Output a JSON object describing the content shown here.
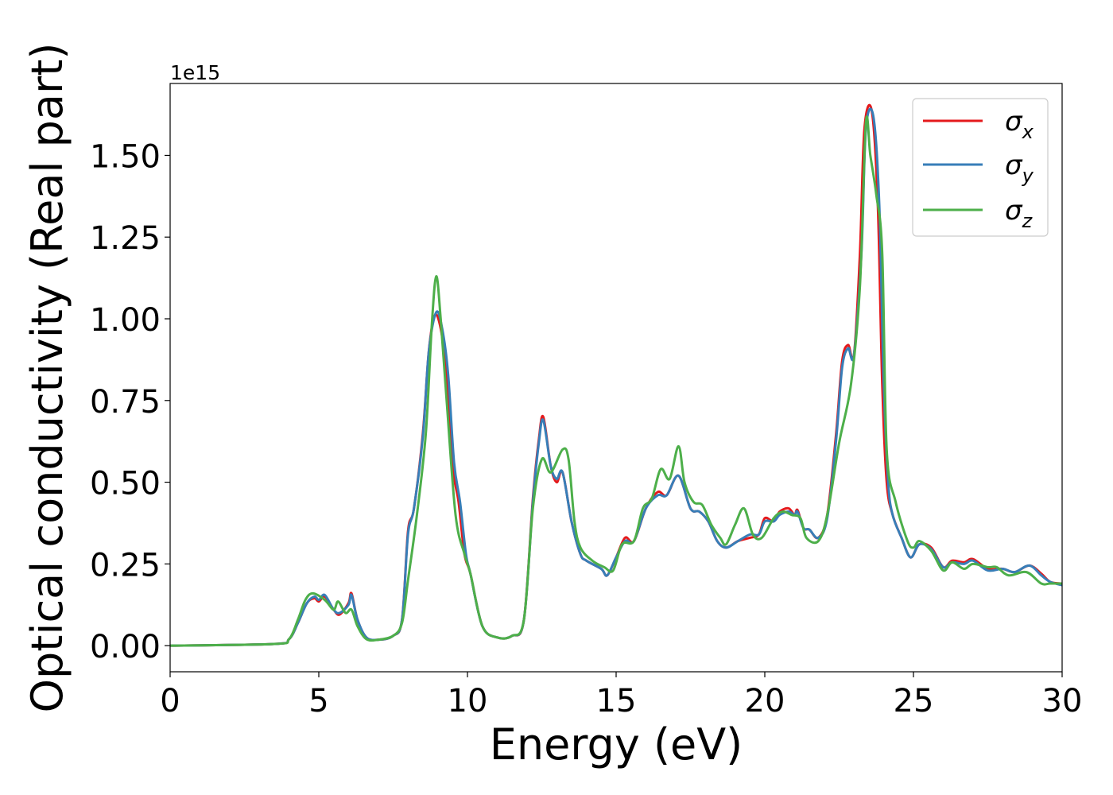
{
  "chart_data": {
    "type": "line",
    "title": "",
    "xlabel": "Energy (eV)",
    "ylabel": "Optical conductivity (Real part)",
    "y_offset_text": "1e15",
    "xlim": [
      0,
      30
    ],
    "ylim": [
      -0.08,
      1.72
    ],
    "xticks": [
      0,
      5,
      10,
      15,
      20,
      25,
      30
    ],
    "xtick_labels": [
      "0",
      "5",
      "10",
      "15",
      "20",
      "25",
      "30"
    ],
    "yticks": [
      0,
      0.25,
      0.5,
      0.75,
      1.0,
      1.25,
      1.5
    ],
    "ytick_labels": [
      "0.00",
      "0.25",
      "0.50",
      "0.75",
      "1.00",
      "1.25",
      "1.50"
    ],
    "grid": false,
    "legend_position": "top-right",
    "series": [
      {
        "name": "σx",
        "label_base": "σ",
        "label_sub": "x",
        "color": "#e41a1c",
        "x": [
          0,
          3.5,
          4.0,
          4.3,
          4.6,
          4.85,
          5.0,
          5.2,
          5.5,
          5.7,
          6.0,
          6.1,
          6.3,
          6.6,
          7.0,
          7.5,
          7.8,
          8.0,
          8.2,
          8.5,
          8.7,
          8.9,
          9.1,
          9.3,
          9.5,
          9.7,
          9.9,
          10.1,
          10.5,
          11.0,
          11.5,
          11.9,
          12.2,
          12.4,
          12.55,
          12.8,
          13.0,
          13.2,
          13.5,
          13.8,
          14.0,
          14.5,
          14.7,
          15.0,
          15.3,
          15.6,
          16.0,
          16.4,
          16.7,
          17.1,
          17.5,
          17.8,
          18.1,
          18.4,
          18.7,
          19.1,
          19.5,
          19.8,
          20.0,
          20.3,
          20.5,
          20.8,
          21.0,
          21.1,
          21.3,
          21.5,
          21.8,
          22.1,
          22.4,
          22.6,
          22.8,
          23.0,
          23.2,
          23.35,
          23.6,
          23.8,
          23.95,
          24.1,
          24.3,
          24.6,
          24.9,
          25.2,
          25.6,
          26.0,
          26.3,
          26.7,
          27.0,
          27.5,
          28.0,
          28.4,
          28.9,
          29.3,
          29.6,
          30
        ],
        "y": [
          0,
          0.005,
          0.02,
          0.07,
          0.13,
          0.145,
          0.135,
          0.15,
          0.11,
          0.095,
          0.13,
          0.16,
          0.08,
          0.025,
          0.018,
          0.03,
          0.08,
          0.35,
          0.42,
          0.65,
          0.9,
          1.01,
          0.97,
          0.83,
          0.55,
          0.44,
          0.28,
          0.22,
          0.06,
          0.025,
          0.03,
          0.08,
          0.45,
          0.63,
          0.7,
          0.55,
          0.5,
          0.53,
          0.38,
          0.28,
          0.26,
          0.235,
          0.215,
          0.27,
          0.33,
          0.32,
          0.42,
          0.47,
          0.46,
          0.52,
          0.42,
          0.41,
          0.38,
          0.32,
          0.3,
          0.32,
          0.33,
          0.34,
          0.39,
          0.38,
          0.41,
          0.42,
          0.4,
          0.415,
          0.36,
          0.355,
          0.33,
          0.4,
          0.65,
          0.87,
          0.92,
          0.89,
          1.2,
          1.58,
          1.635,
          1.35,
          0.8,
          0.5,
          0.4,
          0.33,
          0.27,
          0.31,
          0.3,
          0.24,
          0.26,
          0.255,
          0.265,
          0.235,
          0.235,
          0.225,
          0.245,
          0.22,
          0.195,
          0.19
        ]
      },
      {
        "name": "σy",
        "label_base": "σ",
        "label_sub": "y",
        "color": "#377eb8",
        "x": [
          0,
          3.5,
          4.0,
          4.3,
          4.6,
          4.85,
          5.0,
          5.2,
          5.5,
          5.7,
          6.0,
          6.1,
          6.3,
          6.6,
          7.0,
          7.5,
          7.8,
          8.0,
          8.2,
          8.5,
          8.7,
          8.95,
          9.15,
          9.35,
          9.55,
          9.75,
          9.95,
          10.1,
          10.5,
          11.0,
          11.5,
          11.9,
          12.2,
          12.4,
          12.55,
          12.8,
          13.0,
          13.2,
          13.5,
          13.8,
          14.0,
          14.5,
          14.7,
          15.0,
          15.3,
          15.6,
          16.0,
          16.4,
          16.7,
          17.1,
          17.5,
          17.8,
          18.1,
          18.4,
          18.7,
          19.1,
          19.5,
          19.8,
          20.0,
          20.3,
          20.5,
          20.8,
          21.0,
          21.1,
          21.3,
          21.5,
          21.8,
          22.1,
          22.4,
          22.6,
          22.8,
          23.0,
          23.25,
          23.4,
          23.65,
          23.85,
          24.0,
          24.15,
          24.3,
          24.6,
          24.9,
          25.2,
          25.6,
          26.0,
          26.3,
          26.7,
          27.0,
          27.5,
          28.0,
          28.4,
          28.9,
          29.3,
          29.6,
          30
        ],
        "y": [
          0,
          0.005,
          0.02,
          0.07,
          0.13,
          0.15,
          0.14,
          0.155,
          0.11,
          0.1,
          0.125,
          0.155,
          0.08,
          0.025,
          0.018,
          0.03,
          0.08,
          0.34,
          0.42,
          0.64,
          0.9,
          1.02,
          0.97,
          0.83,
          0.56,
          0.44,
          0.28,
          0.22,
          0.06,
          0.025,
          0.03,
          0.08,
          0.44,
          0.62,
          0.69,
          0.55,
          0.51,
          0.53,
          0.38,
          0.28,
          0.26,
          0.235,
          0.215,
          0.27,
          0.32,
          0.32,
          0.42,
          0.46,
          0.46,
          0.52,
          0.42,
          0.41,
          0.38,
          0.32,
          0.3,
          0.32,
          0.34,
          0.34,
          0.38,
          0.38,
          0.4,
          0.41,
          0.4,
          0.41,
          0.36,
          0.355,
          0.33,
          0.39,
          0.63,
          0.85,
          0.91,
          0.89,
          1.2,
          1.58,
          1.62,
          1.35,
          0.8,
          0.5,
          0.4,
          0.33,
          0.27,
          0.31,
          0.295,
          0.24,
          0.255,
          0.25,
          0.26,
          0.23,
          0.235,
          0.225,
          0.245,
          0.215,
          0.195,
          0.185
        ]
      },
      {
        "name": "σz",
        "label_base": "σ",
        "label_sub": "z",
        "color": "#4daf4a",
        "x": [
          0,
          3.5,
          4.0,
          4.3,
          4.55,
          4.8,
          5.2,
          5.5,
          5.65,
          5.9,
          6.1,
          6.3,
          6.6,
          7.0,
          7.5,
          7.8,
          8.0,
          8.3,
          8.6,
          8.8,
          8.95,
          9.1,
          9.3,
          9.6,
          9.9,
          10.1,
          10.5,
          11.0,
          11.5,
          11.9,
          12.2,
          12.5,
          12.8,
          13.2,
          13.4,
          13.6,
          13.8,
          14.2,
          14.6,
          14.9,
          15.2,
          15.6,
          15.9,
          16.2,
          16.5,
          16.8,
          17.1,
          17.3,
          17.6,
          17.9,
          18.2,
          18.5,
          18.7,
          19.0,
          19.3,
          19.6,
          19.9,
          20.3,
          20.6,
          20.9,
          21.2,
          21.4,
          21.8,
          22.1,
          22.5,
          22.9,
          23.2,
          23.4,
          23.55,
          23.75,
          23.95,
          24.1,
          24.4,
          24.8,
          25.0,
          25.2,
          25.6,
          26.0,
          26.3,
          26.7,
          27.0,
          27.5,
          27.8,
          28.2,
          28.8,
          29.3,
          29.6,
          30
        ],
        "y": [
          0,
          0.005,
          0.02,
          0.08,
          0.14,
          0.16,
          0.14,
          0.11,
          0.135,
          0.1,
          0.11,
          0.06,
          0.02,
          0.018,
          0.03,
          0.07,
          0.2,
          0.4,
          0.65,
          0.98,
          1.13,
          1.0,
          0.75,
          0.4,
          0.28,
          0.22,
          0.06,
          0.025,
          0.03,
          0.08,
          0.42,
          0.57,
          0.53,
          0.6,
          0.57,
          0.38,
          0.3,
          0.26,
          0.24,
          0.23,
          0.31,
          0.32,
          0.42,
          0.45,
          0.54,
          0.51,
          0.61,
          0.5,
          0.44,
          0.43,
          0.37,
          0.33,
          0.31,
          0.37,
          0.42,
          0.34,
          0.33,
          0.39,
          0.41,
          0.4,
          0.39,
          0.33,
          0.32,
          0.4,
          0.62,
          0.8,
          1.1,
          1.6,
          1.5,
          1.38,
          1.2,
          0.6,
          0.44,
          0.32,
          0.3,
          0.32,
          0.29,
          0.23,
          0.255,
          0.235,
          0.25,
          0.24,
          0.24,
          0.215,
          0.225,
          0.19,
          0.19,
          0.19
        ]
      }
    ]
  }
}
